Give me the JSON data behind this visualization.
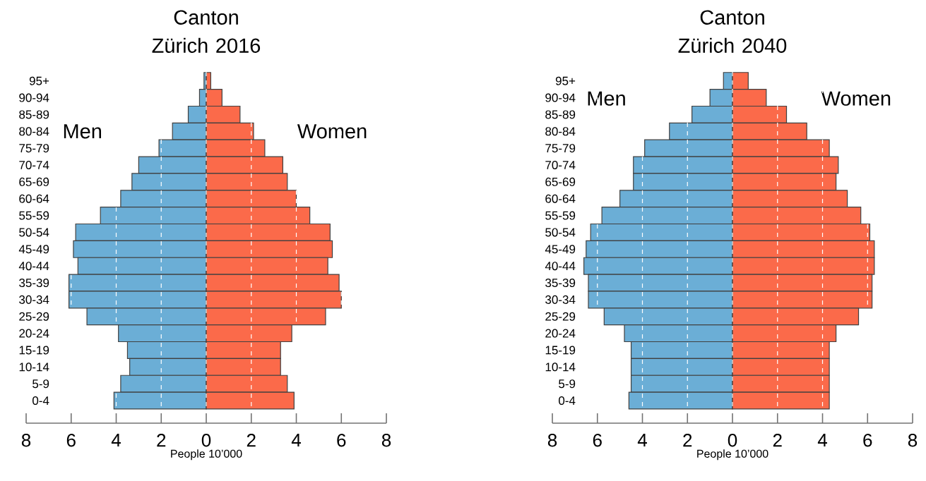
{
  "chart_data": [
    {
      "type": "bar",
      "orientation": "horizontal",
      "title": "Canton Zürich 2016",
      "xlabel": "People 10’000",
      "stacked": true,
      "categories": [
        "95+",
        "90-94",
        "85-89",
        "80-84",
        "75-79",
        "70-74",
        "65-69",
        "60-64",
        "55-59",
        "50-54",
        "45-49",
        "40-44",
        "35-39",
        "30-34",
        "25-29",
        "20-24",
        "15-19",
        "10-14",
        "5-9",
        "0-4"
      ],
      "series": [
        {
          "name": "Men",
          "color": "#6baed6",
          "values": [
            -0.1,
            -0.3,
            -0.8,
            -1.5,
            -2.1,
            -3.0,
            -3.3,
            -3.8,
            -4.7,
            -5.8,
            -5.9,
            -5.7,
            -6.1,
            -6.1,
            -5.3,
            -3.9,
            -3.5,
            -3.4,
            -3.8,
            -4.1
          ]
        },
        {
          "name": "Women",
          "color": "#fb6a4a",
          "values": [
            0.2,
            0.7,
            1.5,
            2.1,
            2.6,
            3.4,
            3.6,
            4.0,
            4.6,
            5.5,
            5.6,
            5.4,
            5.9,
            6.0,
            5.3,
            3.8,
            3.3,
            3.3,
            3.6,
            3.9
          ]
        }
      ],
      "xlim": [
        -8,
        8
      ],
      "xticks": [
        {
          "value": -8,
          "label": "8"
        },
        {
          "value": -6,
          "label": "6"
        },
        {
          "value": -4,
          "label": "4"
        },
        {
          "value": -2,
          "label": "2"
        },
        0,
        2,
        4,
        6,
        8
      ],
      "grid": "x"
    },
    {
      "type": "bar",
      "orientation": "horizontal",
      "title": "Canton Zürich 2040",
      "xlabel": "People 10’000",
      "stacked": true,
      "categories": [
        "95+",
        "90-94",
        "85-89",
        "80-84",
        "75-79",
        "70-74",
        "65-69",
        "60-64",
        "55-59",
        "50-54",
        "45-49",
        "40-44",
        "35-39",
        "30-34",
        "25-29",
        "20-24",
        "15-19",
        "10-14",
        "5-9",
        "0-4"
      ],
      "series": [
        {
          "name": "Men",
          "color": "#6baed6",
          "values": [
            -0.4,
            -1.0,
            -1.8,
            -2.8,
            -3.9,
            -4.4,
            -4.4,
            -5.0,
            -5.8,
            -6.3,
            -6.5,
            -6.6,
            -6.4,
            -6.4,
            -5.7,
            -4.8,
            -4.5,
            -4.5,
            -4.5,
            -4.6
          ]
        },
        {
          "name": "Women",
          "color": "#fb6a4a",
          "values": [
            0.7,
            1.5,
            2.4,
            3.3,
            4.3,
            4.7,
            4.6,
            5.1,
            5.7,
            6.1,
            6.3,
            6.3,
            6.2,
            6.2,
            5.6,
            4.6,
            4.3,
            4.3,
            4.3,
            4.3
          ]
        }
      ],
      "xlim": [
        -8,
        8
      ],
      "xticks": [
        {
          "value": -8,
          "label": "8"
        },
        {
          "value": -6,
          "label": "6"
        },
        {
          "value": -4,
          "label": "4"
        },
        {
          "value": -2,
          "label": "2"
        },
        0,
        2,
        4,
        6,
        8
      ],
      "grid": "x"
    }
  ]
}
